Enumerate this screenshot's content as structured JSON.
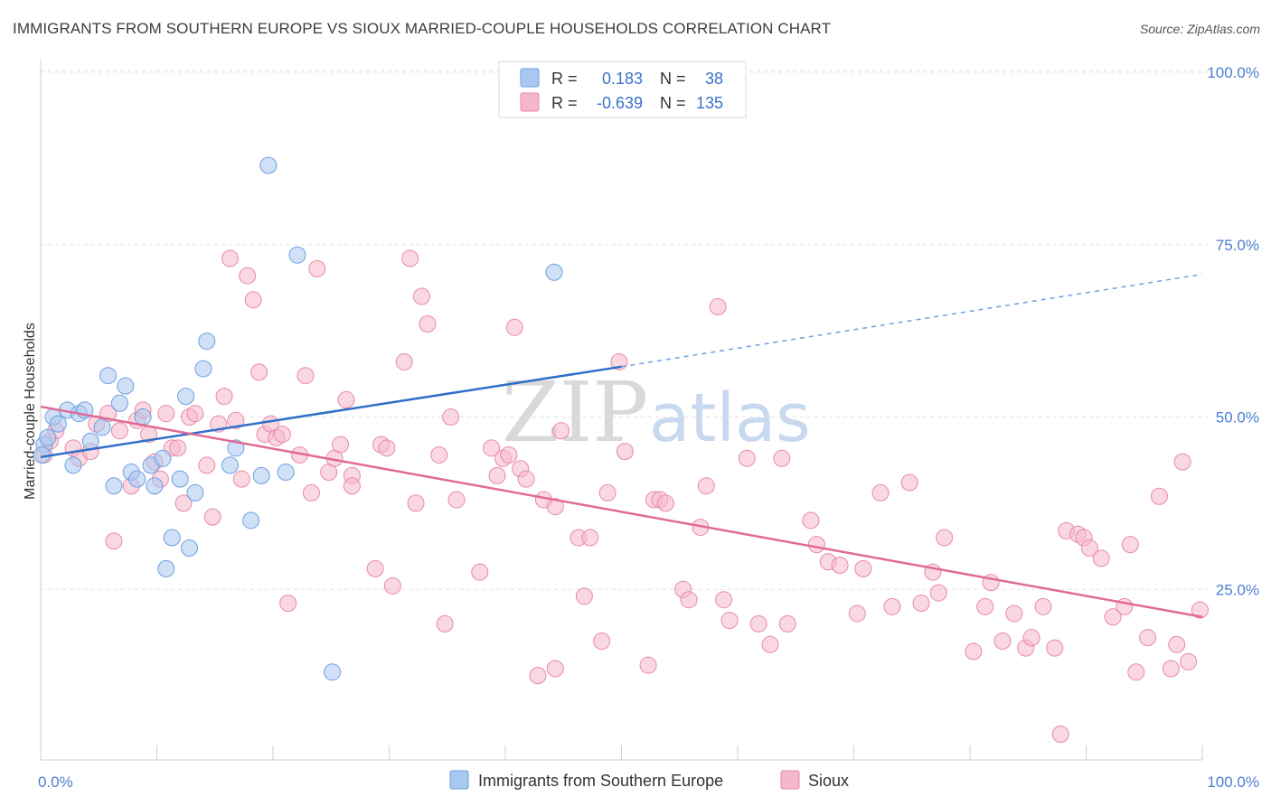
{
  "title": "IMMIGRANTS FROM SOUTHERN EUROPE VS SIOUX MARRIED-COUPLE HOUSEHOLDS CORRELATION CHART",
  "source": "Source: ZipAtlas.com",
  "watermark": {
    "zip": "ZIP",
    "atlas": "atlas"
  },
  "legend": {
    "rows": [
      {
        "r_label": "R =",
        "r_value": "0.183",
        "n_label": "N =",
        "n_value": "38",
        "color": "#a9c8f0"
      },
      {
        "r_label": "R =",
        "r_value": "-0.639",
        "n_label": "N =",
        "n_value": "135",
        "color": "#f5b8cb"
      }
    ]
  },
  "colors": {
    "blue_fill": "#a9c8f0",
    "blue_stroke": "#6d9fe0",
    "blue_line": "#2f6fc9",
    "pink_fill": "#f5b8cb",
    "pink_stroke": "#e889a8",
    "pink_line": "#e06a95"
  },
  "chart_data": {
    "type": "scatter",
    "ylabel": "Married-couple Households",
    "xlim": [
      0,
      100
    ],
    "ylim": [
      0,
      105
    ],
    "y_ticks": [
      {
        "value": 25,
        "label": "25.0%"
      },
      {
        "value": 50,
        "label": "50.0%"
      },
      {
        "value": 75,
        "label": "75.0%"
      },
      {
        "value": 100,
        "label": "100.0%"
      }
    ],
    "x_ticks": [
      {
        "value": 0,
        "label": "0.0%"
      },
      {
        "value": 100,
        "label": "100.0%"
      }
    ],
    "series": [
      {
        "name": "Immigrants from Southern Europe",
        "trend": {
          "x0": 0,
          "y0": 44.2,
          "x1": 50,
          "y1": 57.3,
          "dash_to_x": 100,
          "dash_to_y": 70.7
        },
        "points": [
          [
            0.3,
            46
          ],
          [
            0.6,
            47
          ],
          [
            1.1,
            50
          ],
          [
            1.5,
            49
          ],
          [
            2.3,
            51
          ],
          [
            2.8,
            43
          ],
          [
            3.3,
            50.5
          ],
          [
            3.8,
            51
          ],
          [
            4.3,
            46.5
          ],
          [
            5.3,
            48.5
          ],
          [
            5.8,
            56
          ],
          [
            6.3,
            40
          ],
          [
            6.8,
            52
          ],
          [
            7.3,
            54.5
          ],
          [
            7.8,
            42
          ],
          [
            8.3,
            41
          ],
          [
            8.8,
            50
          ],
          [
            9.5,
            43
          ],
          [
            9.8,
            40
          ],
          [
            10.5,
            44
          ],
          [
            10.8,
            28
          ],
          [
            11.3,
            32.5
          ],
          [
            12,
            41
          ],
          [
            12.5,
            53
          ],
          [
            12.8,
            31
          ],
          [
            13.3,
            39
          ],
          [
            14,
            57
          ],
          [
            14.3,
            61
          ],
          [
            16.3,
            43
          ],
          [
            16.8,
            45.5
          ],
          [
            18.1,
            35
          ],
          [
            19,
            41.5
          ],
          [
            19.6,
            86.5
          ],
          [
            21.1,
            42
          ],
          [
            22.1,
            73.5
          ],
          [
            25.1,
            13
          ],
          [
            44.2,
            71
          ],
          [
            0.1,
            44.5
          ]
        ]
      },
      {
        "name": "Sioux",
        "trend": {
          "x0": 0,
          "y0": 51.5,
          "x1": 100,
          "y1": 21
        },
        "points": [
          [
            0.3,
            44.5
          ],
          [
            0.8,
            46.5
          ],
          [
            1.3,
            48
          ],
          [
            2.8,
            45.5
          ],
          [
            3.3,
            44
          ],
          [
            4.3,
            45
          ],
          [
            4.8,
            49
          ],
          [
            5.8,
            50.5
          ],
          [
            6.3,
            32
          ],
          [
            6.8,
            48
          ],
          [
            7.8,
            40
          ],
          [
            8.3,
            49.5
          ],
          [
            8.8,
            51
          ],
          [
            9.3,
            47.5
          ],
          [
            9.8,
            43.5
          ],
          [
            10.3,
            41
          ],
          [
            10.8,
            50.5
          ],
          [
            11.3,
            45.5
          ],
          [
            11.8,
            45.5
          ],
          [
            12.3,
            37.5
          ],
          [
            12.8,
            50
          ],
          [
            13.3,
            50.5
          ],
          [
            14.3,
            43
          ],
          [
            14.8,
            35.5
          ],
          [
            15.3,
            49
          ],
          [
            15.8,
            53
          ],
          [
            16.3,
            73
          ],
          [
            16.8,
            49.5
          ],
          [
            17.3,
            41
          ],
          [
            17.8,
            70.5
          ],
          [
            18.3,
            67
          ],
          [
            18.8,
            56.5
          ],
          [
            19.3,
            47.5
          ],
          [
            19.8,
            49
          ],
          [
            20.3,
            47
          ],
          [
            20.8,
            47.5
          ],
          [
            21.3,
            23
          ],
          [
            22.3,
            44.5
          ],
          [
            22.8,
            56
          ],
          [
            23.3,
            39
          ],
          [
            23.8,
            71.5
          ],
          [
            24.8,
            42
          ],
          [
            25.3,
            44
          ],
          [
            25.8,
            46
          ],
          [
            26.3,
            52.5
          ],
          [
            26.8,
            41.5
          ],
          [
            28.8,
            28
          ],
          [
            29.3,
            46
          ],
          [
            29.8,
            45.5
          ],
          [
            30.3,
            25.5
          ],
          [
            31.3,
            58
          ],
          [
            31.8,
            73
          ],
          [
            32.3,
            37.5
          ],
          [
            32.8,
            67.5
          ],
          [
            33.3,
            63.5
          ],
          [
            34.3,
            44.5
          ],
          [
            34.8,
            20
          ],
          [
            35.3,
            50
          ],
          [
            35.8,
            38
          ],
          [
            37.8,
            27.5
          ],
          [
            38.8,
            45.5
          ],
          [
            39.3,
            41.5
          ],
          [
            39.8,
            44
          ],
          [
            40.3,
            44.5
          ],
          [
            40.8,
            63
          ],
          [
            41.3,
            42.5
          ],
          [
            41.8,
            41
          ],
          [
            42.8,
            12.5
          ],
          [
            43.3,
            38
          ],
          [
            44.3,
            13.5
          ],
          [
            44.8,
            48
          ],
          [
            46.3,
            32.5
          ],
          [
            46.8,
            24
          ],
          [
            47.3,
            32.5
          ],
          [
            48.3,
            17.5
          ],
          [
            48.8,
            39
          ],
          [
            50.3,
            45
          ],
          [
            52.3,
            14
          ],
          [
            52.8,
            38
          ],
          [
            53.3,
            38
          ],
          [
            53.8,
            37.5
          ],
          [
            55.3,
            25
          ],
          [
            55.8,
            23.5
          ],
          [
            56.8,
            34
          ],
          [
            57.3,
            40
          ],
          [
            58.8,
            23.5
          ],
          [
            59.3,
            20.5
          ],
          [
            60.8,
            44
          ],
          [
            61.8,
            20
          ],
          [
            62.8,
            17
          ],
          [
            63.8,
            44
          ],
          [
            64.3,
            20
          ],
          [
            66.3,
            35
          ],
          [
            66.8,
            31.5
          ],
          [
            67.8,
            29
          ],
          [
            68.8,
            28.5
          ],
          [
            70.3,
            21.5
          ],
          [
            70.8,
            28
          ],
          [
            72.3,
            39
          ],
          [
            73.3,
            22.5
          ],
          [
            74.8,
            40.5
          ],
          [
            75.8,
            23
          ],
          [
            76.8,
            27.5
          ],
          [
            77.3,
            24.5
          ],
          [
            77.8,
            32.5
          ],
          [
            80.3,
            16
          ],
          [
            81.8,
            26
          ],
          [
            82.8,
            17.5
          ],
          [
            83.8,
            21.5
          ],
          [
            84.8,
            16.5
          ],
          [
            85.3,
            18
          ],
          [
            86.3,
            22.5
          ],
          [
            87.3,
            16.5
          ],
          [
            88.3,
            33.5
          ],
          [
            89.3,
            33
          ],
          [
            89.8,
            32.5
          ],
          [
            90.3,
            31
          ],
          [
            91.3,
            29.5
          ],
          [
            92.3,
            21
          ],
          [
            93.3,
            22.5
          ],
          [
            93.8,
            31.5
          ],
          [
            94.3,
            13
          ],
          [
            95.3,
            18
          ],
          [
            96.3,
            38.5
          ],
          [
            97.3,
            13.5
          ],
          [
            97.8,
            17
          ],
          [
            98.3,
            43.5
          ],
          [
            98.8,
            14.5
          ],
          [
            99.8,
            22
          ],
          [
            87.8,
            4
          ],
          [
            58.3,
            66
          ],
          [
            49.8,
            58
          ],
          [
            26.8,
            40
          ],
          [
            44.3,
            37
          ],
          [
            81.3,
            22.5
          ]
        ]
      }
    ]
  },
  "bottom_legend": [
    {
      "label": "Immigrants from Southern Europe",
      "color": "#a9c8f0"
    },
    {
      "label": "Sioux",
      "color": "#f5b8cb"
    }
  ]
}
